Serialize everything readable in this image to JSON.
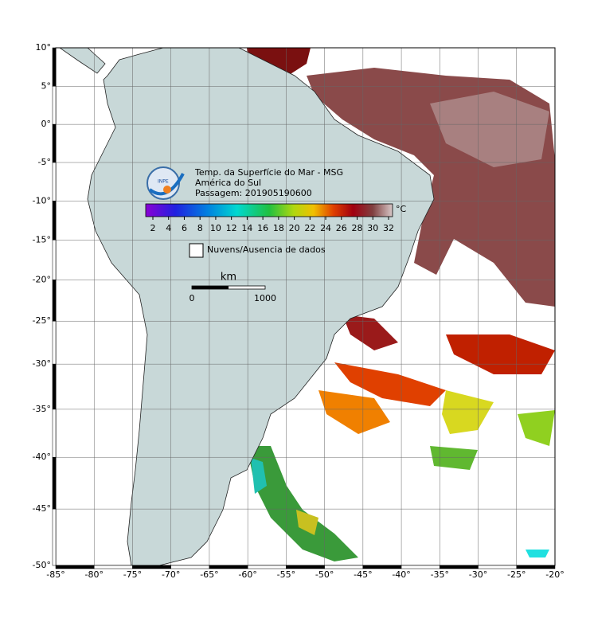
{
  "map": {
    "lon_ticks": [
      {
        "value": -85,
        "label": "-85°"
      },
      {
        "value": -80,
        "label": "-80°"
      },
      {
        "value": -75,
        "label": "-75°"
      },
      {
        "value": -70,
        "label": "-70°"
      },
      {
        "value": -65,
        "label": "-65°"
      },
      {
        "value": -60,
        "label": "-60°"
      },
      {
        "value": -55,
        "label": "-55°"
      },
      {
        "value": -50,
        "label": "-50°"
      },
      {
        "value": -45,
        "label": "-45°"
      },
      {
        "value": -40,
        "label": "-40°"
      },
      {
        "value": -35,
        "label": "-35°"
      },
      {
        "value": -30,
        "label": "-30°"
      },
      {
        "value": -25,
        "label": "-25°"
      },
      {
        "value": -20,
        "label": "-20°"
      }
    ],
    "lat_ticks": [
      {
        "value": 10,
        "label": "10°"
      },
      {
        "value": 5,
        "label": "5°"
      },
      {
        "value": 0,
        "label": "0°"
      },
      {
        "value": -5,
        "label": "-5°"
      },
      {
        "value": -10,
        "label": "-10°"
      },
      {
        "value": -15,
        "label": "-15°"
      },
      {
        "value": -20,
        "label": "-20°"
      },
      {
        "value": -25,
        "label": "-25°"
      },
      {
        "value": -30,
        "label": "-30°"
      },
      {
        "value": -35,
        "label": "-35°"
      },
      {
        "value": -40,
        "label": "-40°"
      },
      {
        "value": -45,
        "label": "-45°"
      },
      {
        "value": -50,
        "label": "-50°"
      }
    ],
    "title": [
      "Temp. da Superfície do Mar - MSG",
      "América do Sul",
      "Passagem: 201905190600"
    ],
    "logo": "INPE",
    "colorbar": {
      "ticks": [
        2,
        4,
        6,
        8,
        10,
        12,
        14,
        16,
        18,
        20,
        22,
        24,
        26,
        28,
        30,
        32
      ],
      "unit": "°C"
    },
    "legend": "Nuvens/Ausencia de dados",
    "scale": {
      "unit": "km",
      "start": "0",
      "end": "1000"
    }
  }
}
